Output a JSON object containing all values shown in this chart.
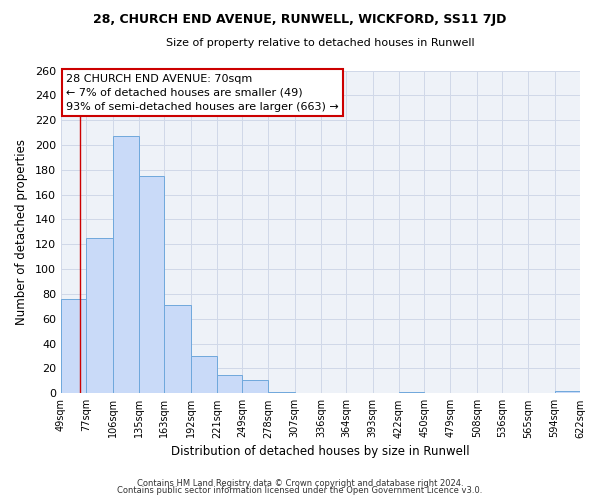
{
  "title": "28, CHURCH END AVENUE, RUNWELL, WICKFORD, SS11 7JD",
  "subtitle": "Size of property relative to detached houses in Runwell",
  "xlabel": "Distribution of detached houses by size in Runwell",
  "ylabel": "Number of detached properties",
  "bin_edges": [
    49,
    77,
    106,
    135,
    163,
    192,
    221,
    249,
    278,
    307,
    336,
    364,
    393,
    422,
    450,
    479,
    508,
    536,
    565,
    594,
    622
  ],
  "bar_heights": [
    76,
    125,
    207,
    175,
    71,
    30,
    15,
    11,
    1,
    0,
    0,
    0,
    0,
    1,
    0,
    0,
    0,
    0,
    0,
    2
  ],
  "bar_color": "#c9daf8",
  "bar_edge_color": "#6fa8dc",
  "property_line_x": 70,
  "property_line_color": "#cc0000",
  "ylim": [
    0,
    260
  ],
  "yticks": [
    0,
    20,
    40,
    60,
    80,
    100,
    120,
    140,
    160,
    180,
    200,
    220,
    240,
    260
  ],
  "annotation_line1": "28 CHURCH END AVENUE: 70sqm",
  "annotation_line2": "← 7% of detached houses are smaller (49)",
  "annotation_line3": "93% of semi-detached houses are larger (663) →",
  "annotation_box_color": "#cc0000",
  "footer_line1": "Contains HM Land Registry data © Crown copyright and database right 2024.",
  "footer_line2": "Contains public sector information licensed under the Open Government Licence v3.0.",
  "grid_color": "#d0d8e8",
  "background_color": "#eef2f8",
  "title_fontsize": 9,
  "subtitle_fontsize": 8
}
